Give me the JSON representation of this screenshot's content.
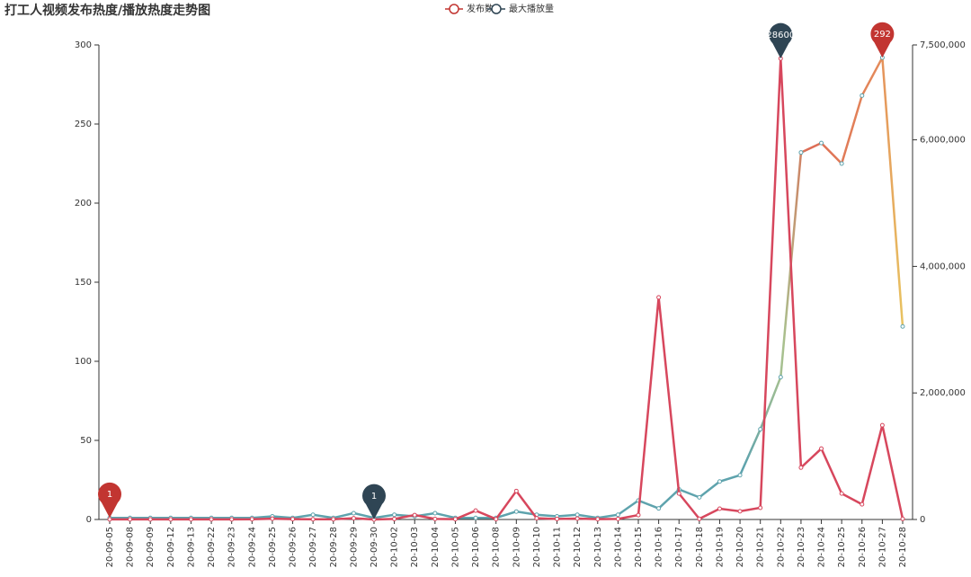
{
  "chart_data": {
    "type": "line",
    "title": "打工人视频发布热度/播放热度走势图",
    "categories": [
      "20-09-05",
      "20-09-08",
      "20-09-09",
      "20-09-12",
      "20-09-13",
      "20-09-22",
      "20-09-23",
      "20-09-24",
      "20-09-25",
      "20-09-26",
      "20-09-27",
      "20-09-28",
      "20-09-29",
      "20-09-30",
      "20-10-02",
      "20-10-03",
      "20-10-04",
      "20-10-05",
      "20-10-06",
      "20-10-08",
      "20-10-09",
      "20-10-10",
      "20-10-11",
      "20-10-12",
      "20-10-13",
      "20-10-14",
      "20-10-15",
      "20-10-16",
      "20-10-17",
      "20-10-18",
      "20-10-19",
      "20-10-20",
      "20-10-21",
      "20-10-22",
      "20-10-23",
      "20-10-24",
      "20-10-25",
      "20-10-26",
      "20-10-27",
      "20-10-28"
    ],
    "series": [
      {
        "name": "发布数",
        "color": "#c23531",
        "line_colors": [
          "#5ea3ad",
          "#5ea3ad",
          "#a9c18e",
          "#dd6b55",
          "#e48a5a",
          "#e8c361"
        ],
        "values": [
          1,
          1,
          1,
          1,
          1,
          1,
          1,
          1,
          2,
          1,
          3,
          1,
          4,
          1,
          3,
          2,
          4,
          1,
          1,
          1,
          5,
          3,
          2,
          3,
          1,
          3,
          12,
          7,
          19,
          14,
          24,
          28,
          57,
          90,
          232,
          238,
          225,
          268,
          292,
          122
        ]
      },
      {
        "name": "最大播放量",
        "color": "#2f4554",
        "line_color": "#d7475d",
        "axis": "y2",
        "values": [
          2000,
          1500,
          1800,
          2200,
          1600,
          2500,
          2100,
          3000,
          12000,
          6000,
          4000,
          3500,
          20000,
          1,
          8000,
          70000,
          9000,
          5000,
          140000,
          6000,
          450000,
          20000,
          8000,
          15000,
          5000,
          9000,
          70000,
          3510000,
          410000,
          10000,
          170000,
          130000,
          185000,
          7286000,
          820000,
          1120000,
          410000,
          240000,
          1490000,
          10000
        ]
      }
    ],
    "mark_points": [
      "min",
      "max"
    ],
    "ylim": [
      0,
      300
    ],
    "yticks": [
      0,
      50,
      100,
      150,
      200,
      250,
      300
    ],
    "y2lim": [
      0,
      7500000
    ],
    "y2ticks": [
      0,
      {
        "value": 2000000,
        "label": "2,000,000"
      },
      {
        "value": 4000000,
        "label": "4,000,000"
      },
      {
        "value": 6000000,
        "label": "6,000,000"
      },
      {
        "value": 7500000,
        "label": "7,500,000"
      }
    ]
  }
}
